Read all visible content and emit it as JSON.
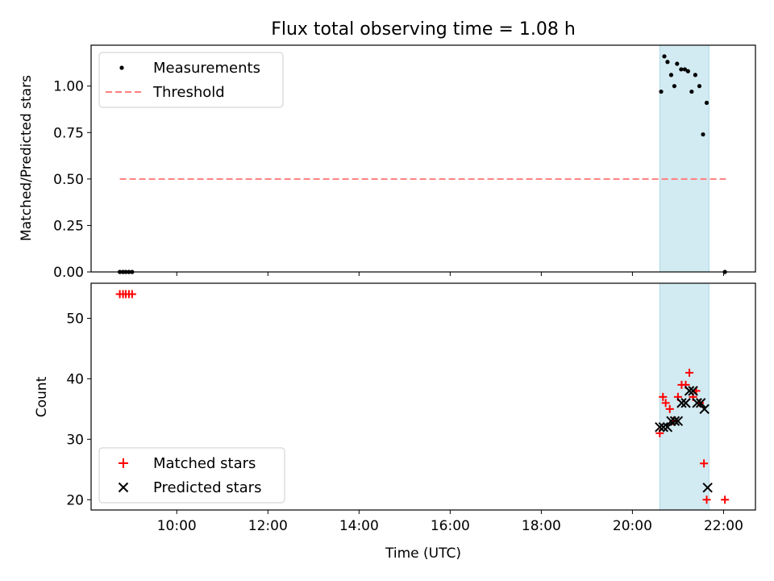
{
  "figure": {
    "title": "Flux total observing time = 1.08 h",
    "xlabel": "Time (UTC)",
    "x_ticks": [
      {
        "h": 10,
        "label": "10:00"
      },
      {
        "h": 12,
        "label": "12:00"
      },
      {
        "h": 14,
        "label": "14:00"
      },
      {
        "h": 16,
        "label": "16:00"
      },
      {
        "h": 18,
        "label": "18:00"
      },
      {
        "h": 20,
        "label": "20:00"
      },
      {
        "h": 22,
        "label": "22:00"
      }
    ],
    "xlim_hours": [
      8.12,
      22.7
    ],
    "observing_window_hours": [
      20.6,
      21.68
    ],
    "colors": {
      "window": "#add8e6",
      "threshold": "#ff7f7f",
      "measurements": "#000000",
      "matched": "#ff0000",
      "predicted": "#000000"
    }
  },
  "chart_data": [
    {
      "type": "scatter",
      "ylabel": "Matched/Predicted stars",
      "ylim": [
        0,
        1.22
      ],
      "y_ticks": [
        "0.00",
        "0.25",
        "0.50",
        "0.75",
        "1.00"
      ],
      "legend_position": "top-left",
      "series": [
        {
          "name": "Measurements",
          "marker": "dot",
          "points": [
            [
              8.75,
              0.0
            ],
            [
              8.82,
              0.0
            ],
            [
              8.88,
              0.0
            ],
            [
              8.95,
              0.0
            ],
            [
              9.02,
              0.0
            ],
            [
              20.63,
              0.97
            ],
            [
              20.7,
              1.16
            ],
            [
              20.77,
              1.13
            ],
            [
              20.85,
              1.06
            ],
            [
              20.92,
              1.0
            ],
            [
              20.98,
              1.12
            ],
            [
              21.07,
              1.09
            ],
            [
              21.15,
              1.09
            ],
            [
              21.22,
              1.08
            ],
            [
              21.3,
              0.97
            ],
            [
              21.38,
              1.06
            ],
            [
              21.47,
              1.0
            ],
            [
              21.55,
              0.74
            ],
            [
              21.63,
              0.91
            ],
            [
              22.03,
              0.0
            ]
          ]
        },
        {
          "name": "Threshold",
          "style": "dashed",
          "points": [
            [
              8.75,
              0.5
            ],
            [
              22.05,
              0.5
            ]
          ]
        }
      ]
    },
    {
      "type": "scatter",
      "ylabel": "Count",
      "ylim": [
        18.3,
        55.8
      ],
      "y_ticks": [
        "20",
        "30",
        "40",
        "50"
      ],
      "legend_position": "bottom-left",
      "series": [
        {
          "name": "Matched stars",
          "marker": "plus",
          "points": [
            [
              8.75,
              54
            ],
            [
              8.82,
              54
            ],
            [
              8.88,
              54
            ],
            [
              8.95,
              54
            ],
            [
              9.02,
              54
            ],
            [
              20.6,
              31
            ],
            [
              20.67,
              37
            ],
            [
              20.73,
              36
            ],
            [
              20.82,
              35
            ],
            [
              20.9,
              33
            ],
            [
              21.0,
              37
            ],
            [
              21.08,
              39
            ],
            [
              21.17,
              39
            ],
            [
              21.25,
              41
            ],
            [
              21.33,
              37
            ],
            [
              21.4,
              38
            ],
            [
              21.48,
              36
            ],
            [
              21.57,
              26
            ],
            [
              21.63,
              20
            ],
            [
              22.03,
              20
            ]
          ]
        },
        {
          "name": "Predicted stars",
          "marker": "x",
          "points": [
            [
              20.6,
              32
            ],
            [
              20.68,
              32
            ],
            [
              20.77,
              32
            ],
            [
              20.85,
              33
            ],
            [
              20.93,
              33
            ],
            [
              21.0,
              33
            ],
            [
              21.08,
              36
            ],
            [
              21.17,
              36
            ],
            [
              21.25,
              38
            ],
            [
              21.33,
              38
            ],
            [
              21.42,
              36
            ],
            [
              21.5,
              36
            ],
            [
              21.58,
              35
            ],
            [
              21.65,
              22
            ]
          ]
        }
      ]
    }
  ]
}
